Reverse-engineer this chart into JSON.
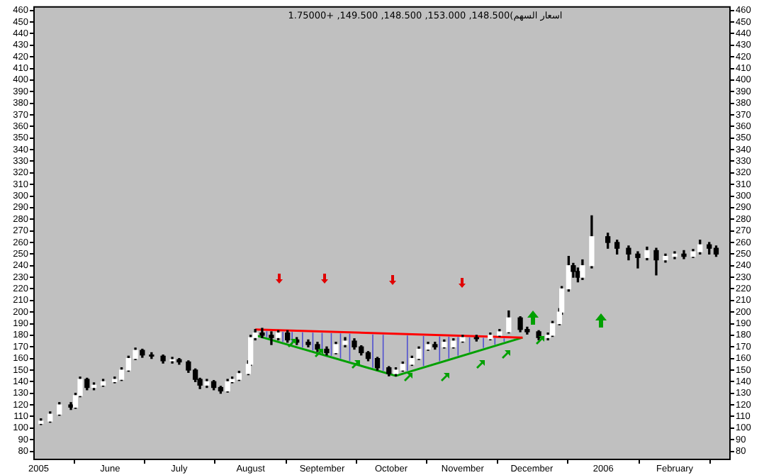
{
  "chart_data": {
    "type": "candlestick",
    "title": "1.75000+ ,149.500 ,148.500 ,153.000 ,148.500(اسعار السهم",
    "x": [
      "2005-05-02",
      "2005-05-06",
      "2005-05-10",
      "2005-05-15",
      "2005-05-17",
      "2005-05-19",
      "2005-05-22",
      "2005-05-25",
      "2005-05-29",
      "2005-06-03",
      "2005-06-06",
      "2005-06-09",
      "2005-06-12",
      "2005-06-15",
      "2005-06-19",
      "2005-06-24",
      "2005-06-28",
      "2005-07-01",
      "2005-07-05",
      "2005-07-08",
      "2005-07-10",
      "2005-07-13",
      "2005-07-16",
      "2005-07-19",
      "2005-07-22",
      "2005-07-24",
      "2005-07-27",
      "2005-07-31",
      "2005-08-01",
      "2005-08-03",
      "2005-08-06",
      "2005-08-10",
      "2005-08-13",
      "2005-08-17",
      "2005-08-21",
      "2005-08-26",
      "2005-08-30",
      "2005-09-03",
      "2005-09-07",
      "2005-09-11",
      "2005-09-15",
      "2005-09-18",
      "2005-09-21",
      "2005-09-25",
      "2005-09-30",
      "2005-10-03",
      "2005-10-06",
      "2005-10-10",
      "2005-10-13",
      "2005-10-17",
      "2005-10-20",
      "2005-10-24",
      "2005-10-28",
      "2005-11-01",
      "2005-11-07",
      "2005-11-13",
      "2005-11-17",
      "2005-11-21",
      "2005-11-26",
      "2005-11-29",
      "2005-12-04",
      "2005-12-08",
      "2005-12-10",
      "2005-12-13",
      "2005-12-14",
      "2005-12-17",
      "2005-12-19",
      "2005-12-21",
      "2005-12-23",
      "2005-12-27",
      "2006-01-03",
      "2006-01-07",
      "2006-01-12",
      "2006-01-16",
      "2006-01-20",
      "2006-01-24",
      "2006-01-28",
      "2006-02-01",
      "2006-02-05",
      "2006-02-09",
      "2006-02-12",
      "2006-02-16",
      "2006-02-19"
    ],
    "ohlc": [
      [
        104,
        108,
        103,
        106
      ],
      [
        106,
        114,
        105,
        112
      ],
      [
        112,
        122,
        111,
        120
      ],
      [
        120,
        122,
        116,
        118
      ],
      [
        118,
        130,
        117,
        128
      ],
      [
        128,
        144,
        127,
        142
      ],
      [
        142,
        143,
        133,
        135
      ],
      [
        135,
        139,
        133,
        137
      ],
      [
        137,
        142,
        136,
        140
      ],
      [
        140,
        144,
        139,
        142
      ],
      [
        142,
        152,
        141,
        150
      ],
      [
        150,
        162,
        149,
        160
      ],
      [
        160,
        169,
        159,
        167
      ],
      [
        167,
        168,
        161,
        163
      ],
      [
        163,
        165,
        160,
        162
      ],
      [
        162,
        163,
        156,
        158
      ],
      [
        158,
        161,
        156,
        159
      ],
      [
        159,
        160,
        155,
        157
      ],
      [
        157,
        158,
        148,
        150
      ],
      [
        150,
        151,
        140,
        142
      ],
      [
        142,
        143,
        134,
        137
      ],
      [
        137,
        142,
        135,
        140
      ],
      [
        140,
        141,
        133,
        135
      ],
      [
        135,
        136,
        130,
        132
      ],
      [
        132,
        142,
        131,
        140
      ],
      [
        140,
        144,
        139,
        142
      ],
      [
        142,
        149,
        141,
        147
      ],
      [
        147,
        158,
        146,
        155
      ],
      [
        155,
        180,
        154,
        178
      ],
      [
        178,
        185,
        176,
        182
      ],
      [
        182,
        186,
        178,
        180
      ],
      [
        180,
        183,
        172,
        178
      ],
      [
        178,
        184,
        176,
        182
      ],
      [
        182,
        184,
        174,
        176
      ],
      [
        176,
        178,
        172,
        174
      ],
      [
        174,
        176,
        170,
        172
      ],
      [
        172,
        174,
        166,
        168
      ],
      [
        168,
        170,
        163,
        165
      ],
      [
        165,
        174,
        164,
        172
      ],
      [
        172,
        178,
        170,
        175
      ],
      [
        175,
        177,
        168,
        170
      ],
      [
        170,
        171,
        163,
        165
      ],
      [
        165,
        166,
        158,
        160
      ],
      [
        160,
        161,
        150,
        152
      ],
      [
        152,
        153,
        145,
        147
      ],
      [
        147,
        152,
        145,
        150
      ],
      [
        150,
        157,
        149,
        155
      ],
      [
        155,
        162,
        154,
        160
      ],
      [
        160,
        170,
        159,
        168
      ],
      [
        168,
        174,
        167,
        172
      ],
      [
        172,
        174,
        168,
        170
      ],
      [
        170,
        176,
        169,
        174
      ],
      [
        170,
        177,
        169,
        175
      ],
      [
        175,
        180,
        174,
        178
      ],
      [
        178,
        180,
        175,
        177
      ],
      [
        177,
        182,
        176,
        180
      ],
      [
        180,
        185,
        179,
        183
      ],
      [
        183,
        201,
        182,
        195
      ],
      [
        195,
        196,
        183,
        185
      ],
      [
        185,
        187,
        181,
        183
      ],
      [
        183,
        184,
        176,
        178
      ],
      [
        178,
        182,
        176,
        180
      ],
      [
        180,
        192,
        179,
        190
      ],
      [
        190,
        203,
        189,
        200
      ],
      [
        200,
        222,
        198,
        220
      ],
      [
        220,
        248,
        218,
        240
      ],
      [
        240,
        242,
        230,
        235
      ],
      [
        235,
        238,
        226,
        230
      ],
      [
        230,
        245,
        228,
        240
      ],
      [
        240,
        283,
        238,
        265
      ],
      [
        265,
        268,
        255,
        260
      ],
      [
        260,
        262,
        250,
        255
      ],
      [
        255,
        257,
        245,
        250
      ],
      [
        250,
        252,
        238,
        247
      ],
      [
        247,
        256,
        245,
        253
      ],
      [
        253,
        255,
        232,
        245
      ],
      [
        245,
        250,
        243,
        248
      ],
      [
        248,
        252,
        246,
        250
      ],
      [
        250,
        253,
        246,
        248
      ],
      [
        248,
        254,
        247,
        252
      ],
      [
        252,
        262,
        250,
        258
      ],
      [
        258,
        260,
        250,
        255
      ],
      [
        255,
        257,
        248,
        250
      ]
    ],
    "series": [
      {
        "type": "line",
        "color": "#ff0000",
        "x": [
          "2005-08-03",
          "2005-11-27"
        ],
        "values": [
          185,
          178
        ]
      },
      {
        "type": "line",
        "color": "#00a000",
        "x": [
          "2005-08-03",
          "2005-10-03",
          "2005-11-27"
        ],
        "values": [
          180,
          145,
          178
        ]
      }
    ],
    "xlim": [
      "2005-04-29",
      "2006-02-25"
    ],
    "xticks": [
      {
        "value": "2005-05-01",
        "label": "2005"
      },
      {
        "value": "2005-06-01",
        "label": "June"
      },
      {
        "value": "2005-07-01",
        "label": "July"
      },
      {
        "value": "2005-08-01",
        "label": "August"
      },
      {
        "value": "2005-09-01",
        "label": "September"
      },
      {
        "value": "2005-10-01",
        "label": "October"
      },
      {
        "value": "2005-11-01",
        "label": "November"
      },
      {
        "value": "2005-12-01",
        "label": "December"
      },
      {
        "value": "2006-01-01",
        "label": "2006"
      },
      {
        "value": "2006-02-01",
        "label": "February"
      }
    ],
    "ylim": [
      73,
      463
    ],
    "yticks": [
      80,
      90,
      100,
      110,
      120,
      130,
      140,
      150,
      160,
      170,
      180,
      190,
      200,
      210,
      220,
      230,
      240,
      250,
      260,
      270,
      280,
      290,
      300,
      310,
      320,
      330,
      340,
      350,
      360,
      370,
      380,
      390,
      400,
      410,
      420,
      430,
      440,
      450,
      460
    ],
    "y2lim": [
      73,
      463
    ],
    "y2ticks": [
      80,
      90,
      100,
      110,
      120,
      130,
      140,
      150,
      160,
      170,
      180,
      190,
      200,
      210,
      220,
      230,
      240,
      250,
      260,
      270,
      280,
      290,
      300,
      310,
      320,
      330,
      340,
      350,
      360,
      370,
      380,
      390,
      400,
      410,
      420,
      430,
      440,
      450,
      460
    ],
    "grid": false
  }
}
